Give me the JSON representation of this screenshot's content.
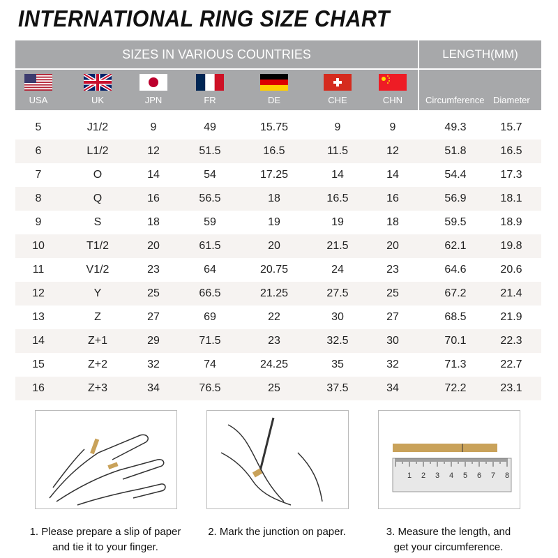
{
  "title": "INTERNATIONAL RING SIZE CHART",
  "header": {
    "sizes_label": "SIZES IN VARIOUS COUNTRIES",
    "length_label": "LENGTH(MM)",
    "countries": [
      {
        "code": "USA",
        "flag": "usa-flag-icon"
      },
      {
        "code": "UK",
        "flag": "uk-flag-icon"
      },
      {
        "code": "JPN",
        "flag": "japan-flag-icon"
      },
      {
        "code": "FR",
        "flag": "france-flag-icon"
      },
      {
        "code": "DE",
        "flag": "germany-flag-icon"
      },
      {
        "code": "CHE",
        "flag": "switzerland-flag-icon"
      },
      {
        "code": "CHN",
        "flag": "china-flag-icon"
      }
    ],
    "length_columns": [
      "Circumference",
      "Diameter"
    ]
  },
  "rows": [
    [
      "5",
      "J1/2",
      "9",
      "49",
      "15.75",
      "9",
      "9",
      "49.3",
      "15.7"
    ],
    [
      "6",
      "L1/2",
      "12",
      "51.5",
      "16.5",
      "11.5",
      "12",
      "51.8",
      "16.5"
    ],
    [
      "7",
      "O",
      "14",
      "54",
      "17.25",
      "14",
      "14",
      "54.4",
      "17.3"
    ],
    [
      "8",
      "Q",
      "16",
      "56.5",
      "18",
      "16.5",
      "16",
      "56.9",
      "18.1"
    ],
    [
      "9",
      "S",
      "18",
      "59",
      "19",
      "19",
      "18",
      "59.5",
      "18.9"
    ],
    [
      "10",
      "T1/2",
      "20",
      "61.5",
      "20",
      "21.5",
      "20",
      "62.1",
      "19.8"
    ],
    [
      "11",
      "V1/2",
      "23",
      "64",
      "20.75",
      "24",
      "23",
      "64.6",
      "20.6"
    ],
    [
      "12",
      "Y",
      "25",
      "66.5",
      "21.25",
      "27.5",
      "25",
      "67.2",
      "21.4"
    ],
    [
      "13",
      "Z",
      "27",
      "69",
      "22",
      "30",
      "27",
      "68.5",
      "21.9"
    ],
    [
      "14",
      "Z+1",
      "29",
      "71.5",
      "23",
      "32.5",
      "30",
      "70.1",
      "22.3"
    ],
    [
      "15",
      "Z+2",
      "32",
      "74",
      "24.25",
      "35",
      "32",
      "71.3",
      "22.7"
    ],
    [
      "16",
      "Z+3",
      "34",
      "76.5",
      "25",
      "37.5",
      "34",
      "72.2",
      "23.1"
    ]
  ],
  "steps": [
    {
      "line1": "1. Please prepare a slip of paper",
      "line2": "and tie it to your finger."
    },
    {
      "line1": "2. Mark the junction on paper.",
      "line2": ""
    },
    {
      "line1": "3. Measure the length, and",
      "line2": "get your circumference."
    }
  ],
  "ruler_numbers": [
    "1",
    "2",
    "3",
    "4",
    "5",
    "6",
    "7",
    "8"
  ],
  "colors": {
    "header_bg": "#a7a8aa",
    "row_alt": "#f6f3f1",
    "paper_strip": "#c9a25a"
  }
}
